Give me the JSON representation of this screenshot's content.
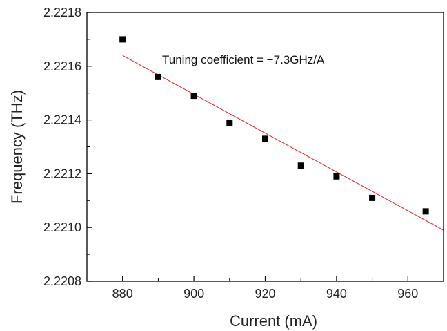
{
  "chart_data": {
    "type": "scatter",
    "xlabel": "Current (mA)",
    "ylabel": "Frequency (THz)",
    "xlim": [
      870,
      970
    ],
    "ylim": [
      2.2208,
      2.2218
    ],
    "x_ticks": [
      880,
      900,
      920,
      940,
      960
    ],
    "y_ticks": [
      "2.2208",
      "2.2210",
      "2.2212",
      "2.2214",
      "2.2216",
      "2.2218"
    ],
    "grid": false,
    "series": [
      {
        "marker": "square",
        "color": "#000000",
        "x": [
          880,
          890,
          900,
          910,
          920,
          930,
          940,
          950,
          965
        ],
        "y": [
          2.2217,
          2.22156,
          2.22149,
          2.22139,
          2.22133,
          2.22123,
          2.22119,
          2.22111,
          2.22106
        ]
      }
    ],
    "fit_line": {
      "color": "#e8312f",
      "x": [
        880,
        970
      ],
      "y": [
        2.22164,
        2.22099
      ]
    },
    "annotation": "Tuning coefficient = −7.3GHz/A"
  }
}
